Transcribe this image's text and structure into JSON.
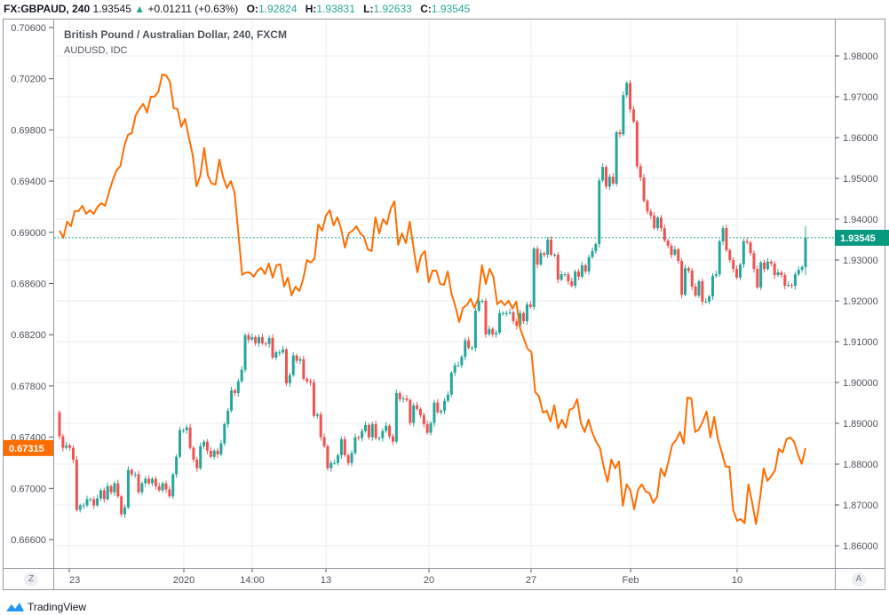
{
  "header": {
    "symbol": "FX:GBPAUD, 240",
    "last": "1.93545",
    "change_icon": "triangle-up-icon",
    "change": "+0.01211 (+0.63%)",
    "o_label": "O:",
    "o": "1.92824",
    "h_label": "H:",
    "h": "1.93831",
    "l_label": "L:",
    "l": "1.92633",
    "c_label": "C:",
    "c": "1.93545"
  },
  "legend": {
    "main": "British Pound / Australian Dollar, 240, FXCM",
    "overlay": "AUDUSD, IDC"
  },
  "buttons": {
    "left": "Z",
    "right": "A"
  },
  "branding": {
    "name": "TradingView",
    "icon": "tradingview-logo-icon"
  },
  "colors": {
    "up": "#26a69a",
    "down": "#ef5350",
    "overlay": "#ff6d00",
    "grid": "#e9eef3",
    "axis_text": "#50535e"
  },
  "chart_data": {
    "type": "candlestick+line",
    "x_tick_labels": [
      "23",
      "2020",
      "14:00",
      "13",
      "20",
      "27",
      "Feb",
      "10"
    ],
    "right_axis": {
      "ticks": [
        "1.98000",
        "1.97000",
        "1.96000",
        "1.95000",
        "1.94000",
        "1.93000",
        "1.92000",
        "1.91000",
        "1.90000",
        "1.89000",
        "1.88000",
        "1.87000",
        "1.86000"
      ],
      "range": [
        1.855,
        1.989
      ],
      "last_value_label": "1.93545"
    },
    "left_axis": {
      "ticks": [
        "0.70600",
        "0.70200",
        "0.69800",
        "0.69400",
        "0.69000",
        "0.68600",
        "0.68200",
        "0.67800",
        "0.67400",
        "0.67000",
        "0.66600"
      ],
      "range": [
        0.664,
        0.7076
      ],
      "last_value_label": "0.67315"
    },
    "gbpaud": {
      "axis": "right",
      "first_open": 1.8927,
      "last_candle": {
        "open": 1.92824,
        "high": 1.93831,
        "low": 1.92633,
        "close": 1.93545
      },
      "closes": [
        1.8868,
        1.884,
        1.8846,
        1.884,
        1.8811,
        1.8688,
        1.8699,
        1.8699,
        1.8714,
        1.8714,
        1.8699,
        1.8716,
        1.8736,
        1.8714,
        1.8746,
        1.8731,
        1.8753,
        1.8721,
        1.8677,
        1.8694,
        1.8786,
        1.8775,
        1.8775,
        1.8731,
        1.8753,
        1.8764,
        1.8753,
        1.8764,
        1.8746,
        1.8736,
        1.8753,
        1.8738,
        1.8721,
        1.8775,
        1.8818,
        1.8883,
        1.8883,
        1.889,
        1.884,
        1.8811,
        1.879,
        1.8844,
        1.8855,
        1.8833,
        1.8818,
        1.8833,
        1.8824,
        1.8851,
        1.8898,
        1.8931,
        1.8981,
        1.8974,
        1.9003,
        1.9031,
        1.9116,
        1.9105,
        1.9111,
        1.9096,
        1.9111,
        1.9096,
        1.9094,
        1.9109,
        1.9061,
        1.9074,
        1.9074,
        1.9081,
        1.8998,
        1.9018,
        1.9066,
        1.9053,
        1.9057,
        1.9009,
        1.9003,
        1.9,
        1.8918,
        1.8922,
        1.8866,
        1.8844,
        1.879,
        1.8803,
        1.8803,
        1.8822,
        1.8861,
        1.8822,
        1.8803,
        1.8827,
        1.8866,
        1.8864,
        1.8881,
        1.8896,
        1.8866,
        1.8898,
        1.8864,
        1.8864,
        1.8881,
        1.8894,
        1.8868,
        1.8855,
        1.8974,
        1.8959,
        1.8961,
        1.8957,
        1.8901,
        1.8944,
        1.8935,
        1.892,
        1.8898,
        1.8877,
        1.8901,
        1.8951,
        1.8927,
        1.8931,
        1.8955,
        1.897,
        1.9024,
        1.9042,
        1.9042,
        1.9063,
        1.9103,
        1.9085,
        1.9085,
        1.9176,
        1.92,
        1.92,
        1.9118,
        1.9131,
        1.9118,
        1.9122,
        1.917,
        1.917,
        1.917,
        1.9172,
        1.915,
        1.9139,
        1.917,
        1.915,
        1.9191,
        1.9185,
        1.9328,
        1.9289,
        1.9317,
        1.9313,
        1.935,
        1.9313,
        1.9313,
        1.9252,
        1.9265,
        1.9265,
        1.9248,
        1.9237,
        1.9272,
        1.9259,
        1.9287,
        1.9272,
        1.9307,
        1.9322,
        1.9339,
        1.9495,
        1.9528,
        1.948,
        1.9504,
        1.9487,
        1.9613,
        1.9608,
        1.9704,
        1.9734,
        1.9669,
        1.9639,
        1.953,
        1.9502,
        1.9445,
        1.9419,
        1.9409,
        1.9378,
        1.9404,
        1.9378,
        1.9348,
        1.9335,
        1.9313,
        1.9326,
        1.9298,
        1.9215,
        1.928,
        1.9274,
        1.9235,
        1.9213,
        1.9248,
        1.9198,
        1.9198,
        1.9211,
        1.9261,
        1.9265,
        1.9346,
        1.9378,
        1.9324,
        1.93,
        1.9278,
        1.9257,
        1.9289,
        1.9346,
        1.9343,
        1.9317,
        1.9278,
        1.9233,
        1.9294,
        1.9278,
        1.9296,
        1.9291,
        1.9263,
        1.927,
        1.9263,
        1.9237,
        1.9239,
        1.9237,
        1.9265,
        1.9276,
        1.9283,
        1.93545
      ]
    },
    "audusd": {
      "axis": "left",
      "values": [
        0.69013,
        0.68958,
        0.69083,
        0.69048,
        0.69166,
        0.69166,
        0.69207,
        0.69145,
        0.69173,
        0.69145,
        0.692,
        0.69228,
        0.69207,
        0.69311,
        0.69408,
        0.69484,
        0.69519,
        0.69672,
        0.69762,
        0.69775,
        0.69914,
        0.69963,
        0.70004,
        0.69935,
        0.7006,
        0.7006,
        0.70101,
        0.70233,
        0.70226,
        0.70177,
        0.6997,
        0.69963,
        0.69824,
        0.69886,
        0.69741,
        0.69602,
        0.6936,
        0.69443,
        0.69658,
        0.69443,
        0.69381,
        0.69374,
        0.69568,
        0.69429,
        0.69346,
        0.69401,
        0.69311,
        0.68992,
        0.68667,
        0.68687,
        0.68687,
        0.68653,
        0.68701,
        0.68722,
        0.68674,
        0.68757,
        0.68646,
        0.68743,
        0.6875,
        0.68576,
        0.68646,
        0.68507,
        0.68576,
        0.68542,
        0.68632,
        0.68784,
        0.68764,
        0.68791,
        0.69062,
        0.69013,
        0.69131,
        0.69173,
        0.69055,
        0.69117,
        0.69027,
        0.68881,
        0.68992,
        0.69013,
        0.69048,
        0.68992,
        0.68965,
        0.68868,
        0.68854,
        0.69117,
        0.68992,
        0.69103,
        0.69062,
        0.69186,
        0.69242,
        0.68902,
        0.68992,
        0.68916,
        0.69083,
        0.68881,
        0.68687,
        0.68819,
        0.68854,
        0.68611,
        0.68701,
        0.68701,
        0.68597,
        0.6859,
        0.68694,
        0.68521,
        0.68424,
        0.68299,
        0.6841,
        0.68431,
        0.6848,
        0.6841,
        0.6848,
        0.68743,
        0.68597,
        0.68715,
        0.68653,
        0.68438,
        0.68466,
        0.68431,
        0.68466,
        0.68403,
        0.68459,
        0.68251,
        0.68168,
        0.68092,
        0.68064,
        0.67752,
        0.67717,
        0.67593,
        0.67606,
        0.67523,
        0.67648,
        0.67468,
        0.67537,
        0.67475,
        0.67613,
        0.67627,
        0.67697,
        0.67509,
        0.6744,
        0.67537,
        0.67433,
        0.67364,
        0.67315,
        0.67163,
        0.67052,
        0.67225,
        0.67156,
        0.67211,
        0.66865,
        0.67032,
        0.66983,
        0.66837,
        0.6699,
        0.67032,
        0.66976,
        0.66962,
        0.66886,
        0.66935,
        0.67156,
        0.67094,
        0.67211,
        0.67343,
        0.67378,
        0.6744,
        0.6735,
        0.6771,
        0.67703,
        0.6744,
        0.67461,
        0.67523,
        0.676,
        0.67398,
        0.67558,
        0.67385,
        0.67281,
        0.6717,
        0.6717,
        0.6683,
        0.66747,
        0.66761,
        0.66727,
        0.67032,
        0.66886,
        0.6672,
        0.66914,
        0.67156,
        0.67059,
        0.67094,
        0.67142,
        0.67308,
        0.67281,
        0.67385,
        0.67398,
        0.67364,
        0.67267,
        0.67191,
        0.67315
      ]
    },
    "grid": true
  }
}
